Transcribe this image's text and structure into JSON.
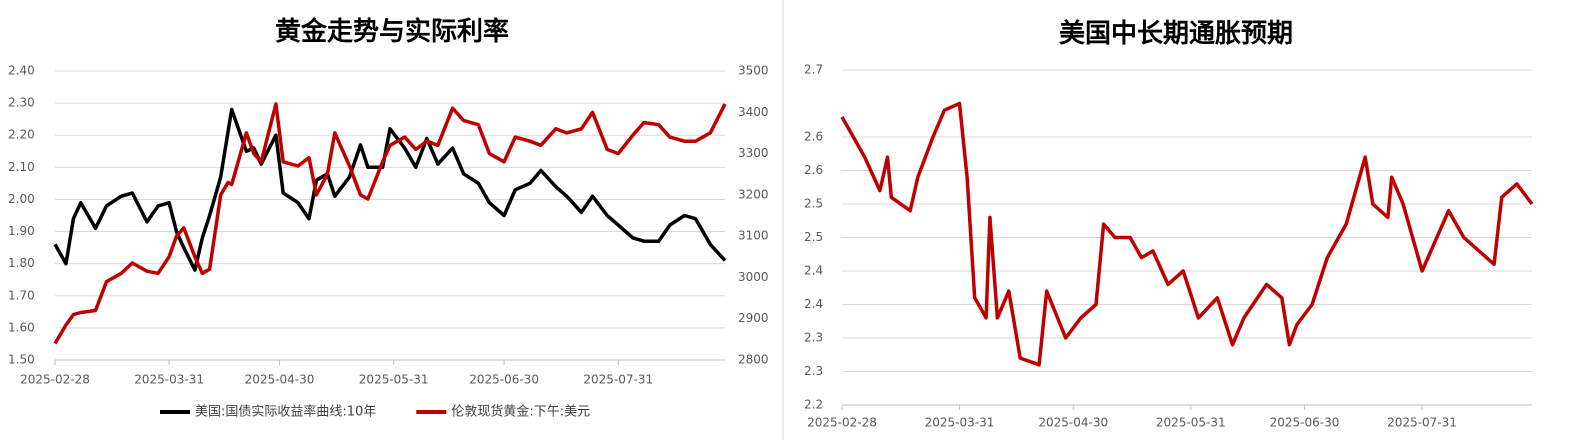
{
  "chart_data": [
    {
      "type": "line",
      "title": "黄金走势与实际利率",
      "x": [
        "2025-02-28",
        "2025-03-03",
        "2025-03-05",
        "2025-03-07",
        "2025-03-11",
        "2025-03-14",
        "2025-03-18",
        "2025-03-21",
        "2025-03-25",
        "2025-03-28",
        "2025-03-31",
        "2025-04-02",
        "2025-04-04",
        "2025-04-07",
        "2025-04-09",
        "2025-04-11",
        "2025-04-14",
        "2025-04-16",
        "2025-04-17",
        "2025-04-21",
        "2025-04-23",
        "2025-04-25",
        "2025-04-29",
        "2025-05-01",
        "2025-05-05",
        "2025-05-08",
        "2025-05-10",
        "2025-05-13",
        "2025-05-15",
        "2025-05-19",
        "2025-05-22",
        "2025-05-24",
        "2025-05-28",
        "2025-05-30",
        "2025-06-03",
        "2025-06-06",
        "2025-06-09",
        "2025-06-12",
        "2025-06-16",
        "2025-06-19",
        "2025-06-23",
        "2025-06-26",
        "2025-06-30",
        "2025-07-03",
        "2025-07-07",
        "2025-07-10",
        "2025-07-14",
        "2025-07-17",
        "2025-07-21",
        "2025-07-24",
        "2025-07-28",
        "2025-07-31",
        "2025-08-04",
        "2025-08-07",
        "2025-08-11",
        "2025-08-14",
        "2025-08-18",
        "2025-08-21",
        "2025-08-25",
        "2025-08-29"
      ],
      "series": [
        {
          "name": "美国:国债实际收益率曲线:10年",
          "color": "#000000",
          "values": [
            1.86,
            1.8,
            1.94,
            1.99,
            1.91,
            1.98,
            2.01,
            2.02,
            1.93,
            1.98,
            1.99,
            1.9,
            1.85,
            1.78,
            1.88,
            1.95,
            2.07,
            2.21,
            2.28,
            2.15,
            2.16,
            2.11,
            2.2,
            2.02,
            1.99,
            1.94,
            2.06,
            2.08,
            2.01,
            2.07,
            2.17,
            2.1,
            2.1,
            2.22,
            2.16,
            2.1,
            2.19,
            2.11,
            2.16,
            2.08,
            2.05,
            1.99,
            1.95,
            2.03,
            2.05,
            2.09,
            2.04,
            2.01,
            1.96,
            2.01,
            1.95,
            1.92,
            1.88,
            1.87,
            1.87,
            1.92,
            1.95,
            1.94,
            1.86,
            1.81
          ]
        },
        {
          "name": "伦敦现货黄金:下午:美元",
          "color": "#c00000",
          "axis": "y2",
          "values": [
            2840,
            2885,
            2910,
            2915,
            2920,
            2990,
            3010,
            3035,
            3015,
            3010,
            3050,
            3100,
            3120,
            3050,
            3010,
            3020,
            3200,
            3230,
            3225,
            3350,
            3300,
            3280,
            3420,
            3280,
            3270,
            3290,
            3200,
            3250,
            3350,
            3270,
            3200,
            3190,
            3280,
            3320,
            3340,
            3310,
            3330,
            3320,
            3410,
            3380,
            3370,
            3300,
            3280,
            3340,
            3330,
            3320,
            3360,
            3350,
            3360,
            3400,
            3310,
            3300,
            3345,
            3375,
            3370,
            3340,
            3330,
            3330,
            3350,
            3420
          ]
        }
      ],
      "xlim": [
        "2025-02-28",
        "2025-08-29"
      ],
      "xticks": [
        "2025-02-28",
        "2025-03-31",
        "2025-04-30",
        "2025-05-31",
        "2025-06-30",
        "2025-07-31"
      ],
      "ylim": [
        1.5,
        2.4
      ],
      "yticks": [
        {
          "value": 1.5,
          "label": "1.50"
        },
        {
          "value": 1.6,
          "label": "1.60"
        },
        {
          "value": 1.7,
          "label": "1.70"
        },
        {
          "value": 1.8,
          "label": "1.80"
        },
        {
          "value": 1.9,
          "label": "1.90"
        },
        {
          "value": 2,
          "label": "2.00"
        },
        {
          "value": 2.1,
          "label": "2.10"
        },
        {
          "value": 2.2,
          "label": "2.20"
        },
        {
          "value": 2.3,
          "label": "2.30"
        },
        {
          "value": 2.4,
          "label": "2.40"
        }
      ],
      "y2lim": [
        2800,
        3500
      ],
      "y2ticks": [
        2800,
        2900,
        3000,
        3100,
        3200,
        3300,
        3400,
        3500
      ],
      "grid": true,
      "legend": "bottom"
    },
    {
      "type": "line",
      "title": "美国中长期通胀预期",
      "x": [
        "2025-02-28",
        "2025-03-06",
        "2025-03-10",
        "2025-03-12",
        "2025-03-13",
        "2025-03-18",
        "2025-03-20",
        "2025-03-24",
        "2025-03-27",
        "2025-03-31",
        "2025-04-02",
        "2025-04-04",
        "2025-04-07",
        "2025-04-08",
        "2025-04-10",
        "2025-04-13",
        "2025-04-16",
        "2025-04-21",
        "2025-04-23",
        "2025-04-28",
        "2025-05-02",
        "2025-05-06",
        "2025-05-08",
        "2025-05-11",
        "2025-05-15",
        "2025-05-18",
        "2025-05-21",
        "2025-05-25",
        "2025-05-29",
        "2025-06-02",
        "2025-06-07",
        "2025-06-11",
        "2025-06-14",
        "2025-06-20",
        "2025-06-24",
        "2025-06-26",
        "2025-06-28",
        "2025-07-02",
        "2025-07-06",
        "2025-07-11",
        "2025-07-16",
        "2025-07-18",
        "2025-07-22",
        "2025-07-23",
        "2025-07-26",
        "2025-07-31",
        "2025-08-07",
        "2025-08-11",
        "2025-08-19",
        "2025-08-21",
        "2025-08-25",
        "2025-08-29"
      ],
      "series": [
        {
          "name": null,
          "color": "#c00000",
          "values": [
            2.63,
            2.57,
            2.52,
            2.57,
            2.51,
            2.49,
            2.54,
            2.6,
            2.64,
            2.65,
            2.54,
            2.36,
            2.33,
            2.48,
            2.33,
            2.37,
            2.27,
            2.26,
            2.37,
            2.3,
            2.33,
            2.35,
            2.47,
            2.45,
            2.45,
            2.42,
            2.43,
            2.38,
            2.4,
            2.33,
            2.36,
            2.29,
            2.33,
            2.38,
            2.36,
            2.29,
            2.32,
            2.35,
            2.42,
            2.47,
            2.57,
            2.5,
            2.48,
            2.54,
            2.5,
            2.4,
            2.49,
            2.45,
            2.41,
            2.51,
            2.53,
            2.5
          ]
        }
      ],
      "xlim": [
        "2025-02-28",
        "2025-08-29"
      ],
      "xticks": [
        "2025-02-28",
        "2025-03-31",
        "2025-04-30",
        "2025-05-31",
        "2025-06-30",
        "2025-07-31"
      ],
      "ylim": [
        2.2,
        2.7
      ],
      "yticks": [
        2.2,
        {
          "value": 2.25,
          "label": "2.3"
        },
        2.3,
        {
          "value": 2.35,
          "label": "2.4"
        },
        2.4,
        {
          "value": 2.45,
          "label": "2.5"
        },
        2.5,
        {
          "value": 2.55,
          "label": "2.6"
        },
        2.6,
        2.7
      ],
      "grid": true
    }
  ]
}
